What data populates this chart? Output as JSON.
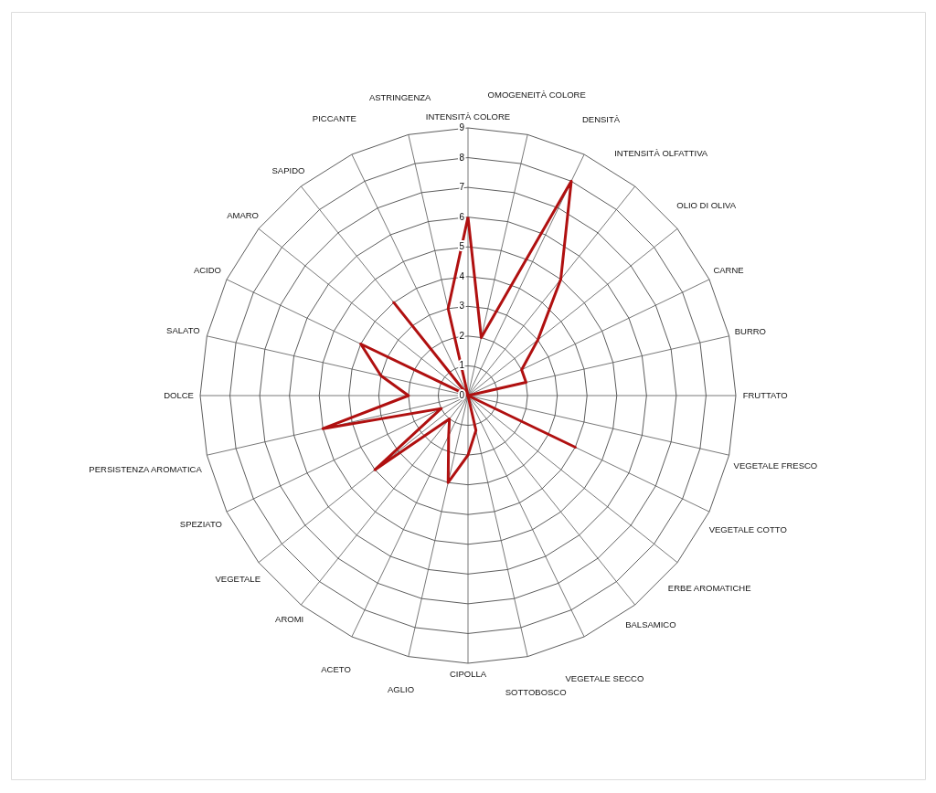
{
  "chart_data": {
    "type": "radar",
    "categories": [
      "INTENSITÀ COLORE",
      "OMOGENEITÀ COLORE",
      "DENSITÀ",
      "INTENSITÀ OLFATTIVA",
      "OLIO DI OLIVA",
      "CARNE",
      "BURRO",
      "FRUTTATO",
      "VEGETALE FRESCO",
      "VEGETALE COTTO",
      "ERBE AROMATICHE",
      "BALSAMICO",
      "VEGETALE SECCO",
      "SOTTOBOSCO",
      "CIPOLLA",
      "AGLIO",
      "ACETO",
      "AROMI",
      "VEGETALE",
      "SPEZIATO",
      "PERSISTENZA AROMATICA",
      "DOLCE",
      "SALATO",
      "ACIDO",
      "AMARO",
      "SAPIDO",
      "PICCANTE",
      "ASTRINGENZA"
    ],
    "series": [
      {
        "color": "#b01010",
        "values": [
          6,
          2,
          8,
          5,
          3,
          2,
          2,
          0,
          0,
          4,
          0,
          0,
          0,
          1.2,
          2,
          3,
          1.5,
          1,
          4,
          1,
          5,
          2,
          3,
          4,
          0,
          4,
          0,
          3
        ]
      }
    ],
    "ylim": [
      0,
      9
    ],
    "yticks": [
      0,
      1,
      2,
      3,
      4,
      5,
      6,
      7,
      8,
      9
    ],
    "grid": true
  }
}
